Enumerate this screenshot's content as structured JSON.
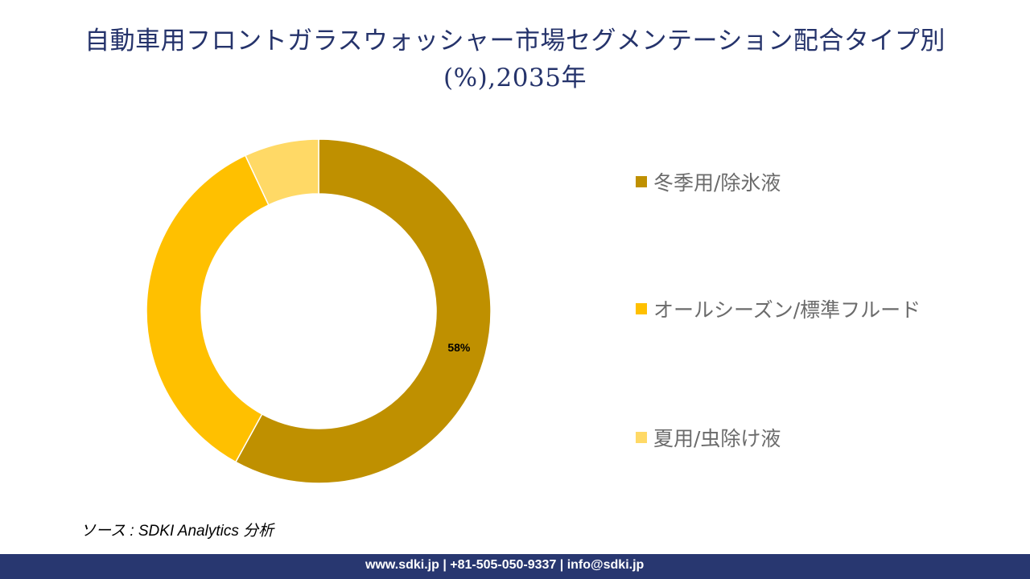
{
  "title": "自動車用フロントガラスウォッシャー市場セグメンテーション配合タイプ別(%),2035年",
  "chart_data": {
    "type": "pie",
    "donut": true,
    "title": "自動車用フロントガラスウォッシャー市場セグメンテーション配合タイプ別(%),2035年",
    "categories": [
      "冬季用/除氷液",
      "オールシーズン/標準フルード",
      "夏用/虫除け液"
    ],
    "values": [
      58,
      35,
      7
    ],
    "data_labels": [
      "58%",
      "",
      ""
    ],
    "colors": [
      "#BF9000",
      "#FFC000",
      "#FFD966"
    ],
    "legend_position": "right"
  },
  "source": "ソース : SDKI Analytics 分析",
  "footer": "www.sdki.jp | +81-505-050-9337 | info@sdki.jp"
}
